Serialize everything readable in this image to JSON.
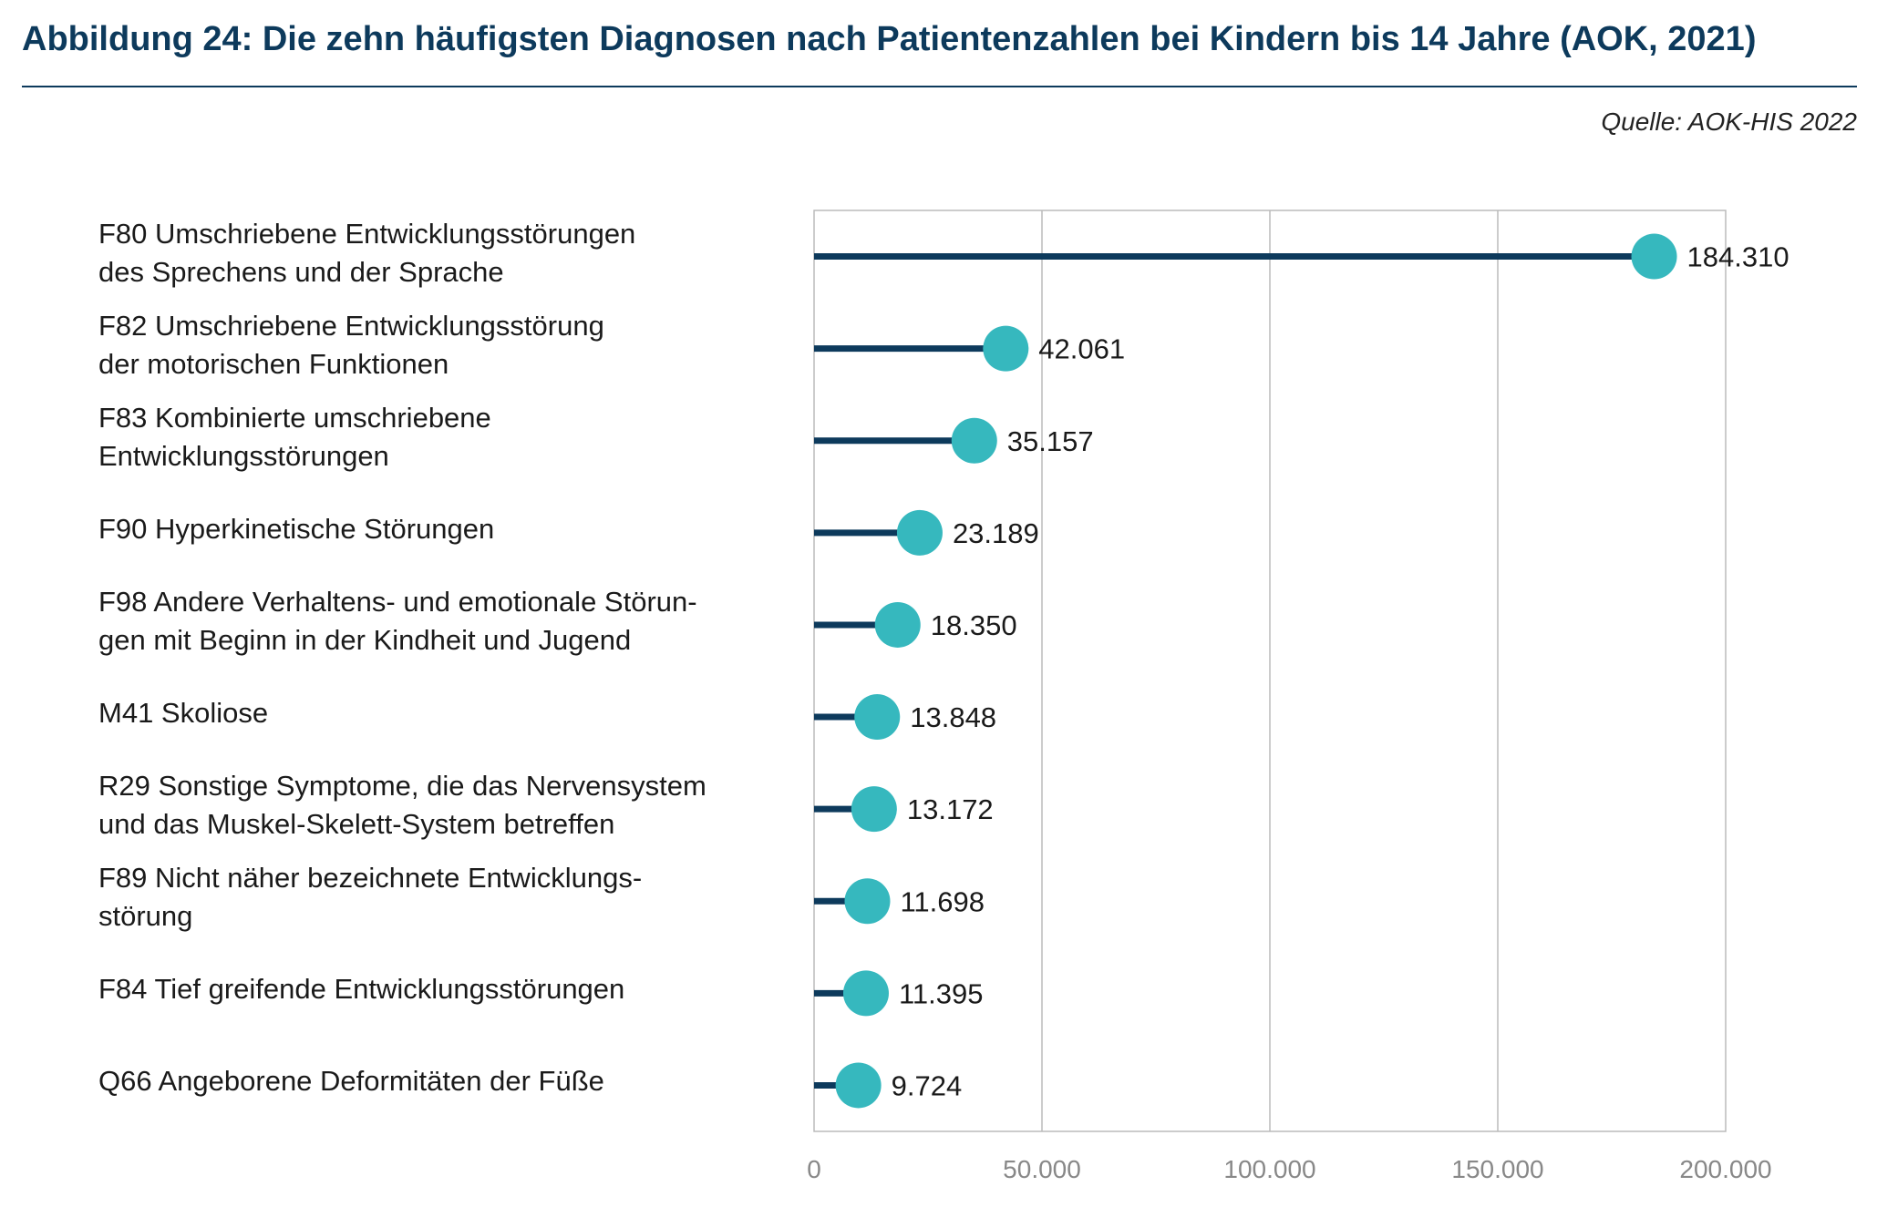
{
  "header": {
    "title": "Abbildung 24: Die zehn häufigsten Diagnosen nach Patientenzahlen bei Kindern bis 14 Jahre (AOK, 2021)",
    "source": "Quelle: AOK-HIS 2022"
  },
  "colors": {
    "title": "#0d3a5c",
    "stem": "#0d3a5c",
    "dot": "#36b8be",
    "grid": "#bbbbbb",
    "tick": "#888888"
  },
  "chart_data": {
    "type": "lollipop",
    "orientation": "horizontal",
    "categories": [
      "F80 Umschriebene Entwicklungsstörungen\ndes Sprechens und der Sprache",
      "F82 Umschriebene Entwicklungsstörung\nder motorischen Funktionen",
      "F83 Kombinierte umschriebene\nEntwicklungsstörungen",
      "F90 Hyperkinetische Störungen",
      "F98 Andere Verhaltens- und emotionale Störun-\ngen mit Beginn in der Kindheit und Jugend",
      "M41 Skoliose",
      "R29 Sonstige Symptome, die das Nervensystem\nund das Muskel-Skelett-System betreffen",
      "F89 Nicht näher bezeichnete Entwicklungs-\nstörung",
      "F84 Tief greifende Entwicklungsstörungen",
      "Q66 Angeborene Deformitäten der Füße"
    ],
    "values": [
      184310,
      42061,
      35157,
      23189,
      18350,
      13848,
      13172,
      11698,
      11395,
      9724
    ],
    "value_labels": [
      "184.310",
      "42.061",
      "35.157",
      "23.189",
      "18.350",
      "13.848",
      "13.172",
      "11.698",
      "11.395",
      "9.724"
    ],
    "xlim": [
      0,
      200000
    ],
    "xticks": [
      0,
      50000,
      100000,
      150000,
      200000
    ],
    "xtick_labels": [
      "0",
      "50.000",
      "100.000",
      "150.000",
      "200.000"
    ],
    "grid": "vertical"
  }
}
